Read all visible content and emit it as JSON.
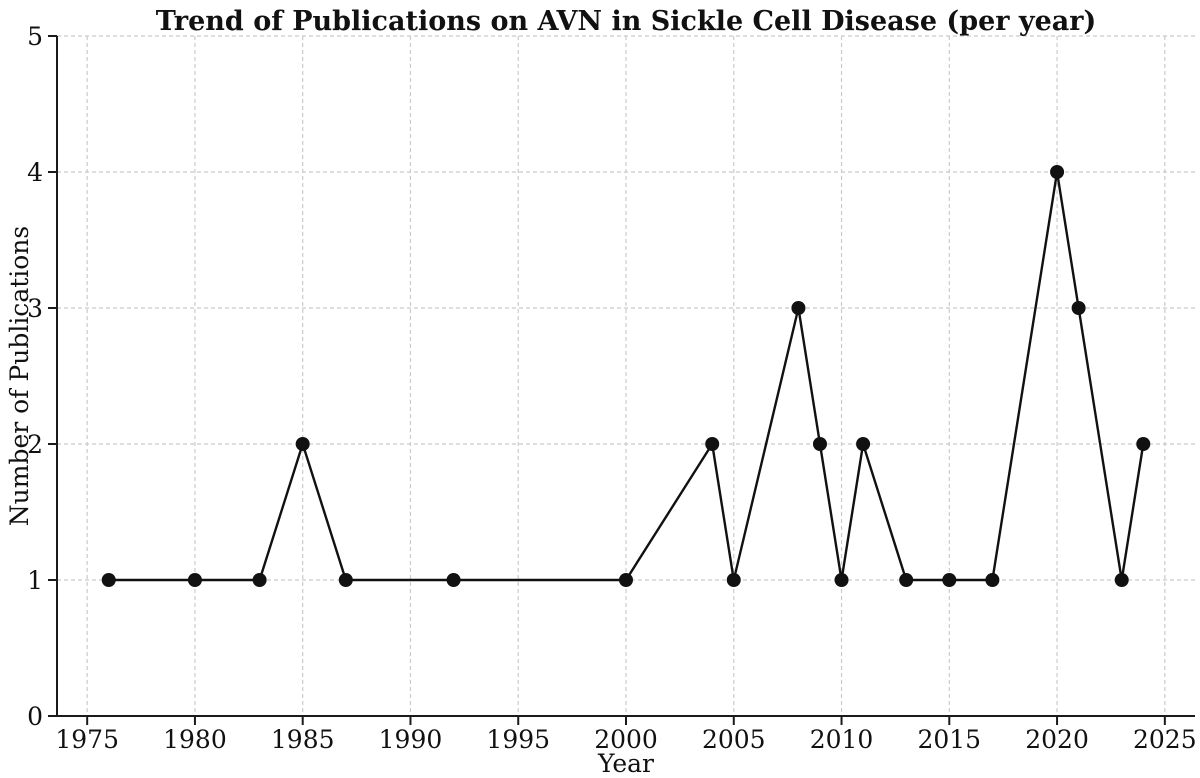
{
  "figure": {
    "background": "#ffffff"
  },
  "chart_data": {
    "type": "line",
    "title": "Trend of Publications on AVN in Sickle Cell Disease (per year)",
    "xlabel": "Year",
    "ylabel": "Number of Publications",
    "x": [
      1976,
      1980,
      1983,
      1985,
      1987,
      1992,
      2000,
      2004,
      2005,
      2008,
      2009,
      2010,
      2011,
      2013,
      2015,
      2017,
      2020,
      2021,
      2023,
      2024
    ],
    "y": [
      1,
      1,
      1,
      2,
      1,
      1,
      1,
      2,
      1,
      3,
      2,
      1,
      2,
      1,
      1,
      1,
      4,
      3,
      1,
      2
    ],
    "xlim": [
      1973.6,
      2026.4
    ],
    "ylim": [
      0,
      5
    ],
    "xticks": [
      1975,
      1980,
      1985,
      1990,
      1995,
      2000,
      2005,
      2010,
      2015,
      2020,
      2025
    ],
    "yticks": [
      0,
      1,
      2,
      3,
      4,
      5
    ],
    "grid": "dashed",
    "grid_color": "#cbcbcb",
    "line_color": "#111111",
    "marker": "circle",
    "marker_color": "#111111",
    "axis_color": "#1a1a1a",
    "legend_position": "none"
  }
}
